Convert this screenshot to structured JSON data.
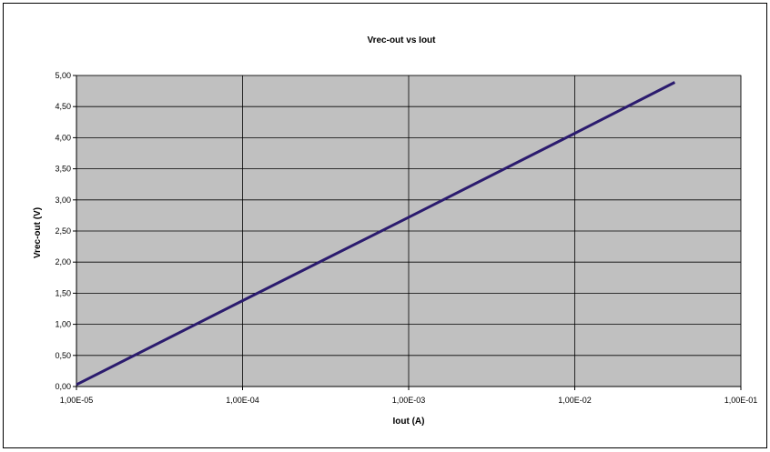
{
  "chart_data": {
    "type": "line",
    "title": "Vrec-out vs Iout",
    "xlabel": "Iout (A)",
    "ylabel": "Vrec-out (V)",
    "x_scale": "log",
    "xlim": [
      1e-05,
      0.1
    ],
    "ylim": [
      0,
      5
    ],
    "grid": true,
    "legend": "none",
    "x_ticks": [
      {
        "value": 1e-05,
        "label": "1,00E-05"
      },
      {
        "value": 0.0001,
        "label": "1,00E-04"
      },
      {
        "value": 0.001,
        "label": "1,00E-03"
      },
      {
        "value": 0.01,
        "label": "1,00E-02"
      },
      {
        "value": 0.1,
        "label": "1,00E-01"
      }
    ],
    "y_ticks": [
      {
        "value": 0,
        "label": "0,00"
      },
      {
        "value": 0.5,
        "label": "0,50"
      },
      {
        "value": 1.0,
        "label": "1,00"
      },
      {
        "value": 1.5,
        "label": "1,50"
      },
      {
        "value": 2.0,
        "label": "2,00"
      },
      {
        "value": 2.5,
        "label": "2,50"
      },
      {
        "value": 3.0,
        "label": "3,00"
      },
      {
        "value": 3.5,
        "label": "3,50"
      },
      {
        "value": 4.0,
        "label": "4,00"
      },
      {
        "value": 4.5,
        "label": "4,50"
      },
      {
        "value": 5.0,
        "label": "5,00"
      }
    ],
    "series": [
      {
        "color": "#2b1b6e",
        "points": [
          {
            "x": 1e-05,
            "y": 0.03
          },
          {
            "x": 0.0001,
            "y": 1.38
          },
          {
            "x": 0.001,
            "y": 2.72
          },
          {
            "x": 0.01,
            "y": 4.07
          },
          {
            "x": 0.04,
            "y": 4.89
          }
        ]
      }
    ],
    "colors": {
      "plot_background": "#c0c0c0",
      "grid": "#000000",
      "series": "#2b1b6e"
    }
  }
}
